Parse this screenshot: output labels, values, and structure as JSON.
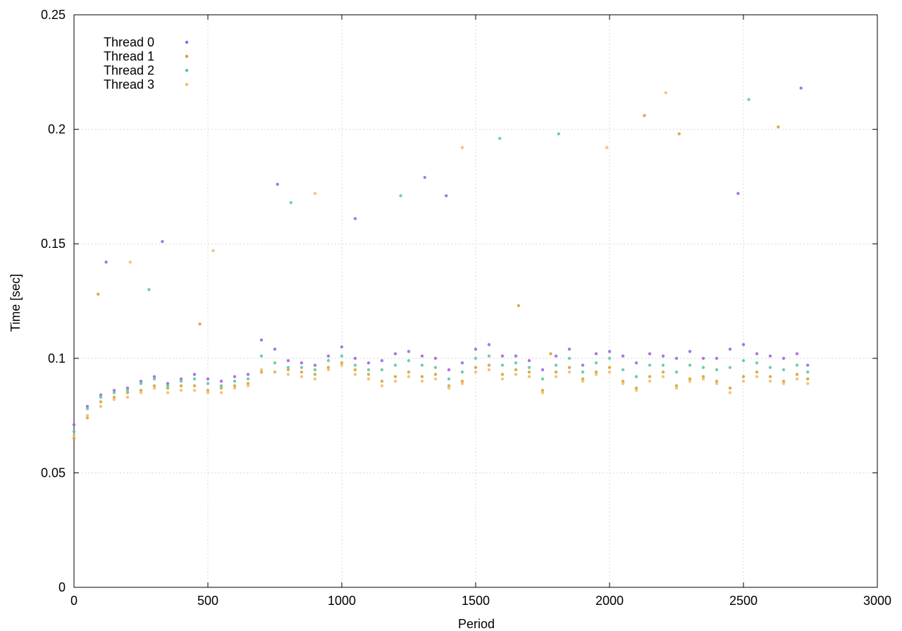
{
  "chart_data": {
    "type": "scatter",
    "title": "",
    "xlabel": "Period",
    "ylabel": "Time [sec]",
    "xlim": [
      0,
      3000
    ],
    "ylim": [
      0,
      0.25
    ],
    "x_ticks": [
      0,
      500,
      1000,
      1500,
      2000,
      2500,
      3000
    ],
    "y_ticks": [
      0,
      0.05,
      0.1,
      0.15,
      0.2,
      0.25
    ],
    "x_tick_labels": [
      "0",
      "500",
      "1000",
      "1500",
      "2000",
      "2500",
      "3000"
    ],
    "y_tick_labels": [
      "0",
      "0.05",
      "0.1",
      "0.15",
      "0.2",
      "0.25"
    ],
    "grid": true,
    "legend_position": "top-left",
    "series": [
      {
        "name": "Thread 0",
        "color": "#9b5de5",
        "points": [
          [
            0,
            0.071
          ],
          [
            50,
            0.079
          ],
          [
            100,
            0.084
          ],
          [
            150,
            0.086
          ],
          [
            200,
            0.087
          ],
          [
            250,
            0.09
          ],
          [
            300,
            0.092
          ],
          [
            350,
            0.089
          ],
          [
            400,
            0.091
          ],
          [
            450,
            0.093
          ],
          [
            500,
            0.091
          ],
          [
            550,
            0.09
          ],
          [
            600,
            0.092
          ],
          [
            650,
            0.093
          ],
          [
            700,
            0.108
          ],
          [
            750,
            0.104
          ],
          [
            800,
            0.099
          ],
          [
            850,
            0.098
          ],
          [
            900,
            0.097
          ],
          [
            950,
            0.101
          ],
          [
            1000,
            0.105
          ],
          [
            1050,
            0.1
          ],
          [
            1100,
            0.098
          ],
          [
            1150,
            0.099
          ],
          [
            1200,
            0.102
          ],
          [
            1250,
            0.103
          ],
          [
            1300,
            0.101
          ],
          [
            1350,
            0.1
          ],
          [
            1400,
            0.095
          ],
          [
            1450,
            0.098
          ],
          [
            1500,
            0.104
          ],
          [
            1550,
            0.106
          ],
          [
            1600,
            0.101
          ],
          [
            1650,
            0.101
          ],
          [
            1700,
            0.099
          ],
          [
            1750,
            0.095
          ],
          [
            1800,
            0.101
          ],
          [
            1850,
            0.104
          ],
          [
            1900,
            0.097
          ],
          [
            1950,
            0.102
          ],
          [
            2000,
            0.103
          ],
          [
            2050,
            0.101
          ],
          [
            2100,
            0.098
          ],
          [
            2150,
            0.102
          ],
          [
            2200,
            0.101
          ],
          [
            2250,
            0.1
          ],
          [
            2300,
            0.103
          ],
          [
            2350,
            0.1
          ],
          [
            2400,
            0.1
          ],
          [
            2450,
            0.104
          ],
          [
            2500,
            0.106
          ],
          [
            2550,
            0.102
          ],
          [
            2600,
            0.101
          ],
          [
            2650,
            0.1
          ],
          [
            2700,
            0.102
          ],
          [
            2740,
            0.097
          ],
          [
            120,
            0.142
          ],
          [
            330,
            0.151
          ],
          [
            760,
            0.176
          ],
          [
            1050,
            0.161
          ],
          [
            1310,
            0.179
          ],
          [
            1390,
            0.171
          ],
          [
            2480,
            0.172
          ],
          [
            2715,
            0.218
          ]
        ]
      },
      {
        "name": "Thread 1",
        "color": "#d3a02b",
        "points": [
          [
            0,
            0.065
          ],
          [
            50,
            0.074
          ],
          [
            100,
            0.081
          ],
          [
            150,
            0.083
          ],
          [
            200,
            0.085
          ],
          [
            250,
            0.086
          ],
          [
            300,
            0.088
          ],
          [
            350,
            0.087
          ],
          [
            400,
            0.088
          ],
          [
            450,
            0.088
          ],
          [
            500,
            0.086
          ],
          [
            550,
            0.087
          ],
          [
            600,
            0.088
          ],
          [
            650,
            0.089
          ],
          [
            700,
            0.094
          ],
          [
            750,
            0.094
          ],
          [
            800,
            0.095
          ],
          [
            850,
            0.094
          ],
          [
            900,
            0.093
          ],
          [
            950,
            0.096
          ],
          [
            1000,
            0.098
          ],
          [
            1050,
            0.095
          ],
          [
            1100,
            0.093
          ],
          [
            1150,
            0.09
          ],
          [
            1200,
            0.092
          ],
          [
            1250,
            0.094
          ],
          [
            1300,
            0.092
          ],
          [
            1350,
            0.093
          ],
          [
            1400,
            0.088
          ],
          [
            1450,
            0.09
          ],
          [
            1500,
            0.096
          ],
          [
            1550,
            0.097
          ],
          [
            1600,
            0.093
          ],
          [
            1650,
            0.095
          ],
          [
            1700,
            0.094
          ],
          [
            1750,
            0.086
          ],
          [
            1800,
            0.094
          ],
          [
            1850,
            0.096
          ],
          [
            1900,
            0.091
          ],
          [
            1950,
            0.094
          ],
          [
            2000,
            0.096
          ],
          [
            2050,
            0.09
          ],
          [
            2100,
            0.087
          ],
          [
            2150,
            0.092
          ],
          [
            2200,
            0.094
          ],
          [
            2250,
            0.088
          ],
          [
            2300,
            0.091
          ],
          [
            2350,
            0.092
          ],
          [
            2400,
            0.09
          ],
          [
            2450,
            0.087
          ],
          [
            2500,
            0.092
          ],
          [
            2550,
            0.094
          ],
          [
            2600,
            0.092
          ],
          [
            2650,
            0.09
          ],
          [
            2700,
            0.093
          ],
          [
            2740,
            0.091
          ],
          [
            90,
            0.128
          ],
          [
            470,
            0.115
          ],
          [
            1660,
            0.123
          ],
          [
            1780,
            0.102
          ],
          [
            2130,
            0.206
          ],
          [
            2260,
            0.198
          ],
          [
            2630,
            0.201
          ]
        ]
      },
      {
        "name": "Thread 2",
        "color": "#57c6a3",
        "points": [
          [
            0,
            0.068
          ],
          [
            50,
            0.078
          ],
          [
            100,
            0.083
          ],
          [
            150,
            0.085
          ],
          [
            200,
            0.086
          ],
          [
            250,
            0.089
          ],
          [
            300,
            0.091
          ],
          [
            350,
            0.088
          ],
          [
            400,
            0.09
          ],
          [
            450,
            0.091
          ],
          [
            500,
            0.089
          ],
          [
            550,
            0.088
          ],
          [
            600,
            0.09
          ],
          [
            650,
            0.091
          ],
          [
            700,
            0.101
          ],
          [
            750,
            0.098
          ],
          [
            800,
            0.096
          ],
          [
            850,
            0.096
          ],
          [
            900,
            0.095
          ],
          [
            950,
            0.099
          ],
          [
            1000,
            0.101
          ],
          [
            1050,
            0.097
          ],
          [
            1100,
            0.095
          ],
          [
            1150,
            0.095
          ],
          [
            1200,
            0.097
          ],
          [
            1250,
            0.099
          ],
          [
            1300,
            0.097
          ],
          [
            1350,
            0.096
          ],
          [
            1400,
            0.091
          ],
          [
            1450,
            0.094
          ],
          [
            1500,
            0.1
          ],
          [
            1550,
            0.101
          ],
          [
            1600,
            0.097
          ],
          [
            1650,
            0.098
          ],
          [
            1700,
            0.096
          ],
          [
            1750,
            0.091
          ],
          [
            1800,
            0.097
          ],
          [
            1850,
            0.1
          ],
          [
            1900,
            0.094
          ],
          [
            1950,
            0.098
          ],
          [
            2000,
            0.1
          ],
          [
            2050,
            0.095
          ],
          [
            2100,
            0.092
          ],
          [
            2150,
            0.097
          ],
          [
            2200,
            0.097
          ],
          [
            2250,
            0.094
          ],
          [
            2300,
            0.097
          ],
          [
            2350,
            0.096
          ],
          [
            2400,
            0.095
          ],
          [
            2450,
            0.096
          ],
          [
            2500,
            0.099
          ],
          [
            2550,
            0.098
          ],
          [
            2600,
            0.096
          ],
          [
            2650,
            0.095
          ],
          [
            2700,
            0.097
          ],
          [
            2740,
            0.094
          ],
          [
            280,
            0.13
          ],
          [
            810,
            0.168
          ],
          [
            1220,
            0.171
          ],
          [
            1590,
            0.196
          ],
          [
            1810,
            0.198
          ],
          [
            2520,
            0.213
          ]
        ]
      },
      {
        "name": "Thread 3",
        "color": "#f4b860",
        "points": [
          [
            0,
            0.066
          ],
          [
            50,
            0.075
          ],
          [
            100,
            0.079
          ],
          [
            150,
            0.082
          ],
          [
            200,
            0.083
          ],
          [
            250,
            0.085
          ],
          [
            300,
            0.087
          ],
          [
            350,
            0.085
          ],
          [
            400,
            0.086
          ],
          [
            450,
            0.086
          ],
          [
            500,
            0.085
          ],
          [
            550,
            0.085
          ],
          [
            600,
            0.087
          ],
          [
            650,
            0.088
          ],
          [
            700,
            0.095
          ],
          [
            750,
            0.094
          ],
          [
            800,
            0.093
          ],
          [
            850,
            0.092
          ],
          [
            900,
            0.091
          ],
          [
            950,
            0.095
          ],
          [
            1000,
            0.097
          ],
          [
            1050,
            0.093
          ],
          [
            1100,
            0.091
          ],
          [
            1150,
            0.088
          ],
          [
            1200,
            0.09
          ],
          [
            1250,
            0.092
          ],
          [
            1300,
            0.09
          ],
          [
            1350,
            0.091
          ],
          [
            1400,
            0.087
          ],
          [
            1450,
            0.089
          ],
          [
            1500,
            0.094
          ],
          [
            1550,
            0.095
          ],
          [
            1600,
            0.091
          ],
          [
            1650,
            0.093
          ],
          [
            1700,
            0.092
          ],
          [
            1750,
            0.085
          ],
          [
            1800,
            0.092
          ],
          [
            1850,
            0.094
          ],
          [
            1900,
            0.09
          ],
          [
            1950,
            0.093
          ],
          [
            2000,
            0.094
          ],
          [
            2050,
            0.089
          ],
          [
            2100,
            0.086
          ],
          [
            2150,
            0.09
          ],
          [
            2200,
            0.092
          ],
          [
            2250,
            0.087
          ],
          [
            2300,
            0.09
          ],
          [
            2350,
            0.091
          ],
          [
            2400,
            0.089
          ],
          [
            2450,
            0.085
          ],
          [
            2500,
            0.09
          ],
          [
            2550,
            0.092
          ],
          [
            2600,
            0.09
          ],
          [
            2650,
            0.089
          ],
          [
            2700,
            0.091
          ],
          [
            2740,
            0.089
          ],
          [
            210,
            0.142
          ],
          [
            520,
            0.147
          ],
          [
            900,
            0.172
          ],
          [
            1450,
            0.192
          ],
          [
            1990,
            0.192
          ],
          [
            2210,
            0.216
          ]
        ]
      }
    ]
  }
}
